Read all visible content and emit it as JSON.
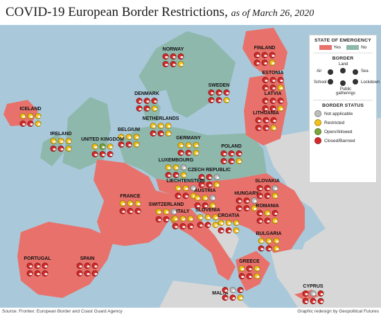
{
  "title": "COVID-19 European Border Restrictions,",
  "subtitle": "as of March 26, 2020",
  "legend": {
    "emergency_heading": "STATE OF EMERGENCY",
    "yes_label": "Yes",
    "no_label": "No",
    "border_heading": "BORDER",
    "border_types": [
      "Air",
      "Land",
      "Sea",
      "School",
      "Public gatherings",
      "Lockdown"
    ],
    "status_heading": "BORDER STATUS",
    "statuses": [
      "Not applicable",
      "Restricted",
      "Open/Allowed",
      "Closed/Banned"
    ]
  },
  "colors": {
    "emergency_yes": "#e8726b",
    "emergency_no": "#8fb8ad",
    "sea": "#a9c9db",
    "non_eu_land": "#d7d7d7",
    "closed": "#d52a2a",
    "restricted": "#f2c21b",
    "open": "#7aa63a",
    "not_applicable": "#bdbdbd"
  },
  "countries": [
    {
      "name": "NORWAY",
      "emergency": "No",
      "border_status": [
        "closed",
        "closed",
        "closed",
        "closed",
        "closed",
        "restricted"
      ]
    },
    {
      "name": "FINLAND",
      "emergency": "Yes",
      "border_status": [
        "closed",
        "closed",
        "closed",
        "closed",
        "closed",
        "restricted"
      ]
    },
    {
      "name": "SWEDEN",
      "emergency": "No",
      "border_status": [
        "closed",
        "closed",
        "closed",
        "closed",
        "closed",
        "restricted"
      ]
    },
    {
      "name": "ESTONIA",
      "emergency": "Yes",
      "border_status": [
        "closed",
        "closed",
        "closed",
        "closed",
        "closed",
        "restricted"
      ]
    },
    {
      "name": "DENMARK",
      "emergency": "No",
      "border_status": [
        "closed",
        "closed",
        "closed",
        "closed",
        "closed",
        "restricted"
      ]
    },
    {
      "name": "LATVIA",
      "emergency": "Yes",
      "border_status": [
        "closed",
        "closed",
        "closed",
        "closed",
        "closed",
        "restricted"
      ]
    },
    {
      "name": "ICELAND",
      "emergency": "Yes",
      "border_status": [
        "restricted",
        "restricted",
        "restricted",
        "closed",
        "closed",
        "restricted"
      ]
    },
    {
      "name": "LITHUANIA",
      "emergency": "Yes",
      "border_status": [
        "closed",
        "closed",
        "closed",
        "closed",
        "closed",
        "restricted"
      ]
    },
    {
      "name": "NETHERLANDS",
      "emergency": "No",
      "border_status": [
        "restricted",
        "restricted",
        "restricted",
        "closed",
        "closed",
        "restricted"
      ]
    },
    {
      "name": "IRELAND",
      "emergency": "No",
      "border_status": [
        "restricted",
        "restricted",
        "restricted",
        "closed",
        "closed",
        "restricted"
      ]
    },
    {
      "name": "BELGIUM",
      "emergency": "No",
      "border_status": [
        "restricted",
        "restricted",
        "restricted",
        "closed",
        "closed",
        "restricted"
      ]
    },
    {
      "name": "UNITED KINGDOM",
      "emergency": "No",
      "border_status": [
        "restricted",
        "open",
        "restricted",
        "closed",
        "closed",
        "closed"
      ]
    },
    {
      "name": "GERMANY",
      "emergency": "No",
      "border_status": [
        "restricted",
        "restricted",
        "restricted",
        "closed",
        "closed",
        "restricted"
      ]
    },
    {
      "name": "POLAND",
      "emergency": "No",
      "border_status": [
        "closed",
        "closed",
        "closed",
        "closed",
        "closed",
        "restricted"
      ]
    },
    {
      "name": "LUXEMBOURG",
      "emergency": "Yes",
      "border_status": [
        "restricted",
        "restricted",
        "not_applicable",
        "closed",
        "closed",
        "restricted"
      ]
    },
    {
      "name": "CZECH REPUBLIC",
      "emergency": "Yes",
      "border_status": [
        "closed",
        "closed",
        "not_applicable",
        "closed",
        "closed",
        "restricted"
      ]
    },
    {
      "name": "LIECHTENSTEIN",
      "emergency": "No",
      "border_status": [
        "restricted",
        "restricted",
        "not_applicable",
        "closed",
        "closed",
        "restricted"
      ]
    },
    {
      "name": "SLOVAKIA",
      "emergency": "Yes",
      "border_status": [
        "closed",
        "closed",
        "not_applicable",
        "closed",
        "closed",
        "restricted"
      ]
    },
    {
      "name": "FRANCE",
      "emergency": "Yes",
      "border_status": [
        "restricted",
        "restricted",
        "restricted",
        "closed",
        "closed",
        "closed"
      ]
    },
    {
      "name": "SWITZERLAND",
      "emergency": "Yes",
      "border_status": [
        "restricted",
        "restricted",
        "not_applicable",
        "closed",
        "closed",
        "restricted"
      ]
    },
    {
      "name": "AUSTRIA",
      "emergency": "Yes",
      "border_status": [
        "restricted",
        "restricted",
        "not_applicable",
        "closed",
        "closed",
        "restricted"
      ]
    },
    {
      "name": "HUNGARY",
      "emergency": "Yes",
      "border_status": [
        "closed",
        "closed",
        "not_applicable",
        "closed",
        "closed",
        "restricted"
      ]
    },
    {
      "name": "ROMANIA",
      "emergency": "Yes",
      "border_status": [
        "closed",
        "restricted",
        "closed",
        "closed",
        "closed",
        "restricted"
      ]
    },
    {
      "name": "ITALY",
      "emergency": "Yes",
      "border_status": [
        "restricted",
        "restricted",
        "restricted",
        "closed",
        "closed",
        "closed"
      ]
    },
    {
      "name": "SLOVENIA",
      "emergency": "Yes",
      "border_status": [
        "restricted",
        "restricted",
        "restricted",
        "closed",
        "closed",
        "restricted"
      ]
    },
    {
      "name": "CROATIA",
      "emergency": "Yes",
      "border_status": [
        "restricted",
        "restricted",
        "restricted",
        "closed",
        "closed",
        "restricted"
      ]
    },
    {
      "name": "BULGARIA",
      "emergency": "Yes",
      "border_status": [
        "restricted",
        "restricted",
        "restricted",
        "closed",
        "closed",
        "restricted"
      ]
    },
    {
      "name": "PORTUGAL",
      "emergency": "Yes",
      "border_status": [
        "closed",
        "closed",
        "closed",
        "closed",
        "closed",
        "closed"
      ]
    },
    {
      "name": "SPAIN",
      "emergency": "Yes",
      "border_status": [
        "closed",
        "closed",
        "closed",
        "closed",
        "closed",
        "closed"
      ]
    },
    {
      "name": "GREECE",
      "emergency": "Yes",
      "border_status": [
        "restricted",
        "closed",
        "restricted",
        "closed",
        "closed",
        "restricted"
      ]
    },
    {
      "name": "MALTA",
      "emergency": "Yes",
      "border_status": [
        "closed",
        "not_applicable",
        "closed",
        "closed",
        "closed",
        "restricted"
      ]
    },
    {
      "name": "CYPRUS",
      "emergency": "Yes",
      "border_status": [
        "closed",
        "not_applicable",
        "closed",
        "closed",
        "closed",
        "closed"
      ]
    }
  ],
  "footer": {
    "source": "Source: Frontex: European Border and Coast Guard Agency",
    "credit": "Graphic redesign by Geopolitical Futures"
  }
}
